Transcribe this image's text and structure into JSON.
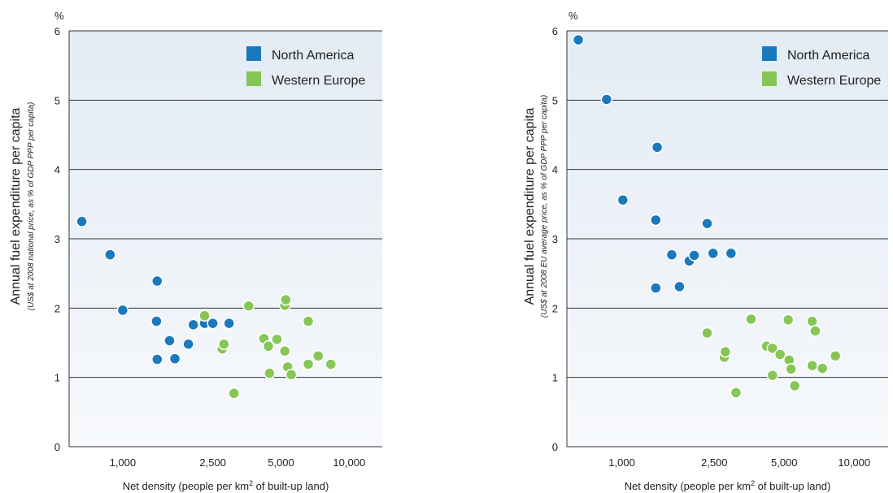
{
  "colors": {
    "north_america": "#1a79bd",
    "western_europe": "#86c656",
    "panel_top": "#e3ebf4",
    "panel_bottom": "#f7f9fc",
    "grid": "#333333"
  },
  "chart_data": [
    {
      "type": "scatter",
      "title": "",
      "unit_label": "%",
      "ylabel": "Annual fuel expenditure per capita",
      "ylabel_sub": "(US$ at 2008 national price, as % of GDP PPP per capita)",
      "xlabel_parts": [
        "Net density (people per km",
        "2",
        " of built-up land)"
      ],
      "x_scale": "log",
      "xlim": [
        580,
        14000
      ],
      "ylim": [
        0,
        6
      ],
      "x_ticks": [
        {
          "value": 1000,
          "label": "1,000"
        },
        {
          "value": 2500,
          "label": "2,500"
        },
        {
          "value": 5000,
          "label": "5,000"
        },
        {
          "value": 10000,
          "label": "10,000"
        }
      ],
      "y_ticks": [
        {
          "value": 0,
          "label": "0"
        },
        {
          "value": 1,
          "label": "1"
        },
        {
          "value": 2,
          "label": "2"
        },
        {
          "value": 3,
          "label": "3"
        },
        {
          "value": 4,
          "label": "4"
        },
        {
          "value": 5,
          "label": "5"
        },
        {
          "value": 6,
          "label": "6"
        }
      ],
      "grid": true,
      "legend_position": "top-right",
      "series": [
        {
          "name": "North America",
          "color": "#1a79bd",
          "points": [
            [
              660,
              3.25
            ],
            [
              880,
              2.77
            ],
            [
              1000,
              1.97
            ],
            [
              1420,
              2.39
            ],
            [
              1410,
              1.81
            ],
            [
              1420,
              1.26
            ],
            [
              1610,
              1.53
            ],
            [
              1700,
              1.27
            ],
            [
              1950,
              1.48
            ],
            [
              2050,
              1.76
            ],
            [
              2300,
              1.78
            ],
            [
              2500,
              1.78
            ],
            [
              2950,
              1.78
            ]
          ]
        },
        {
          "name": "Western Europe",
          "color": "#86c656",
          "points": [
            [
              2300,
              1.89
            ],
            [
              2750,
              1.41
            ],
            [
              2800,
              1.48
            ],
            [
              3100,
              0.77
            ],
            [
              3600,
              2.03
            ],
            [
              4200,
              1.56
            ],
            [
              4400,
              1.45
            ],
            [
              4450,
              1.06
            ],
            [
              4800,
              1.55
            ],
            [
              5200,
              2.04
            ],
            [
              5250,
              2.12
            ],
            [
              5200,
              1.38
            ],
            [
              5350,
              1.15
            ],
            [
              5550,
              1.04
            ],
            [
              6600,
              1.81
            ],
            [
              6600,
              1.19
            ],
            [
              7300,
              1.31
            ],
            [
              8300,
              1.19
            ]
          ]
        }
      ]
    },
    {
      "type": "scatter",
      "title": "",
      "unit_label": "%",
      "ylabel": "Annual fuel expenditure per capita",
      "ylabel_sub": "(US$ at 2008 EU average price, as % of GDP PPP per capita)",
      "xlabel_parts": [
        "Net density (people per km",
        "2",
        " of built-up land)"
      ],
      "x_scale": "log",
      "xlim": [
        580,
        14000
      ],
      "ylim": [
        0,
        6
      ],
      "x_ticks": [
        {
          "value": 1000,
          "label": "1,000"
        },
        {
          "value": 2500,
          "label": "2,500"
        },
        {
          "value": 5000,
          "label": "5,000"
        },
        {
          "value": 10000,
          "label": "10,000"
        }
      ],
      "y_ticks": [
        {
          "value": 0,
          "label": "0"
        },
        {
          "value": 1,
          "label": "1"
        },
        {
          "value": 2,
          "label": "2"
        },
        {
          "value": 3,
          "label": "3"
        },
        {
          "value": 4,
          "label": "4"
        },
        {
          "value": 5,
          "label": "5"
        },
        {
          "value": 6,
          "label": "6"
        }
      ],
      "grid": true,
      "legend_position": "top-right",
      "series": [
        {
          "name": "North America",
          "color": "#1a79bd",
          "points": [
            [
              650,
              5.87
            ],
            [
              860,
              5.01
            ],
            [
              1010,
              3.56
            ],
            [
              1420,
              4.32
            ],
            [
              1400,
              3.27
            ],
            [
              1400,
              2.29
            ],
            [
              1640,
              2.77
            ],
            [
              1770,
              2.31
            ],
            [
              1950,
              2.68
            ],
            [
              2050,
              2.76
            ],
            [
              2330,
              3.22
            ],
            [
              2470,
              2.79
            ],
            [
              2950,
              2.79
            ]
          ]
        },
        {
          "name": "Western Europe",
          "color": "#86c656",
          "points": [
            [
              2330,
              1.64
            ],
            [
              2760,
              1.29
            ],
            [
              2790,
              1.37
            ],
            [
              3100,
              0.78
            ],
            [
              3600,
              1.84
            ],
            [
              4200,
              1.45
            ],
            [
              4450,
              1.42
            ],
            [
              4450,
              1.03
            ],
            [
              4800,
              1.33
            ],
            [
              5250,
              1.25
            ],
            [
              5200,
              1.83
            ],
            [
              5350,
              1.12
            ],
            [
              5550,
              0.88
            ],
            [
              6600,
              1.81
            ],
            [
              6600,
              1.17
            ],
            [
              6800,
              1.67
            ],
            [
              7300,
              1.13
            ],
            [
              8300,
              1.31
            ]
          ]
        }
      ]
    }
  ]
}
